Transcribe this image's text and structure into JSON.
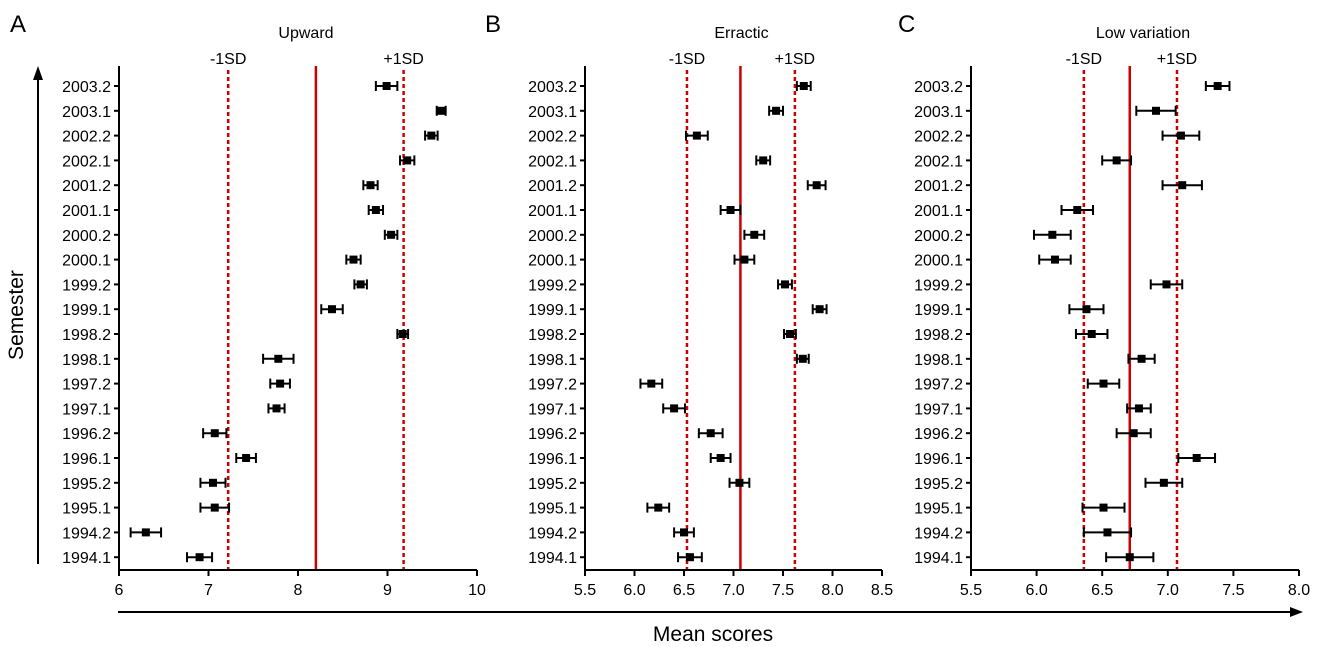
{
  "figure": {
    "ylabel": "Semester",
    "xlabel": "Mean scores",
    "sd_minus_label": "-1SD",
    "sd_plus_label": "+1SD",
    "colors": {
      "points": "#000000",
      "mean_line": "#cc0000",
      "sd_line": "#cc0000"
    }
  },
  "chart_data": [
    {
      "type": "scatter",
      "panel_letter": "A",
      "title": "Upward",
      "xlim": [
        6,
        10
      ],
      "xticks": [
        "6",
        "7",
        "8",
        "9",
        "10"
      ],
      "mean": 8.2,
      "minus_1sd": 7.22,
      "plus_1sd": 9.18,
      "semesters": [
        "2003.2",
        "2003.1",
        "2002.2",
        "2002.1",
        "2001.2",
        "2001.1",
        "2000.2",
        "2000.1",
        "1999.2",
        "1999.1",
        "1998.2",
        "1998.1",
        "1997.2",
        "1997.1",
        "1996.2",
        "1996.1",
        "1995.2",
        "1995.1",
        "1994.2",
        "1994.1"
      ],
      "means": [
        8.99,
        9.6,
        9.49,
        9.22,
        8.81,
        8.87,
        9.04,
        8.62,
        8.7,
        8.38,
        9.17,
        7.78,
        7.8,
        7.76,
        7.07,
        7.42,
        7.05,
        7.07,
        6.3,
        6.9
      ],
      "errors": [
        0.12,
        0.05,
        0.07,
        0.08,
        0.08,
        0.08,
        0.07,
        0.08,
        0.07,
        0.12,
        0.06,
        0.17,
        0.11,
        0.09,
        0.13,
        0.11,
        0.14,
        0.16,
        0.17,
        0.14
      ]
    },
    {
      "type": "scatter",
      "panel_letter": "B",
      "title": "Erractic",
      "xlim": [
        5.5,
        8.5
      ],
      "xticks": [
        "5.5",
        "6.0",
        "6.5",
        "7.0",
        "7.5",
        "8.0",
        "8.5"
      ],
      "mean": 7.07,
      "minus_1sd": 6.53,
      "plus_1sd": 7.62,
      "semesters": [
        "2003.2",
        "2003.1",
        "2002.2",
        "2002.1",
        "2001.2",
        "2001.1",
        "2000.2",
        "2000.1",
        "1999.2",
        "1999.1",
        "1998.2",
        "1998.1",
        "1997.2",
        "1997.1",
        "1996.2",
        "1996.1",
        "1995.2",
        "1995.1",
        "1994.2",
        "1994.1"
      ],
      "means": [
        7.71,
        7.43,
        6.63,
        7.3,
        7.84,
        6.97,
        7.21,
        7.11,
        7.52,
        7.87,
        7.57,
        7.7,
        6.17,
        6.4,
        6.77,
        6.87,
        7.06,
        6.24,
        6.5,
        6.56
      ],
      "errors": [
        0.07,
        0.07,
        0.11,
        0.07,
        0.09,
        0.1,
        0.1,
        0.1,
        0.07,
        0.07,
        0.06,
        0.06,
        0.11,
        0.11,
        0.12,
        0.1,
        0.1,
        0.11,
        0.1,
        0.12
      ]
    },
    {
      "type": "scatter",
      "panel_letter": "C",
      "title": "Low variation",
      "xlim": [
        5.5,
        8.0
      ],
      "xticks": [
        "5.5",
        "6.0",
        "6.5",
        "7.0",
        "7.5",
        "8.0"
      ],
      "mean": 6.71,
      "minus_1sd": 6.36,
      "plus_1sd": 7.07,
      "semesters": [
        "2003.2",
        "2003.1",
        "2002.2",
        "2002.1",
        "2001.2",
        "2001.1",
        "2000.2",
        "2000.1",
        "1999.2",
        "1999.1",
        "1998.2",
        "1998.1",
        "1997.2",
        "1997.1",
        "1996.2",
        "1996.1",
        "1995.2",
        "1995.1",
        "1994.2",
        "1994.1"
      ],
      "means": [
        7.38,
        6.91,
        7.1,
        6.61,
        7.11,
        6.31,
        6.12,
        6.14,
        6.99,
        6.38,
        6.42,
        6.8,
        6.51,
        6.78,
        6.74,
        7.22,
        6.97,
        6.51,
        6.54,
        6.71
      ],
      "errors": [
        0.09,
        0.15,
        0.14,
        0.11,
        0.15,
        0.12,
        0.14,
        0.12,
        0.12,
        0.13,
        0.12,
        0.1,
        0.12,
        0.09,
        0.13,
        0.14,
        0.14,
        0.16,
        0.18,
        0.18
      ]
    }
  ]
}
